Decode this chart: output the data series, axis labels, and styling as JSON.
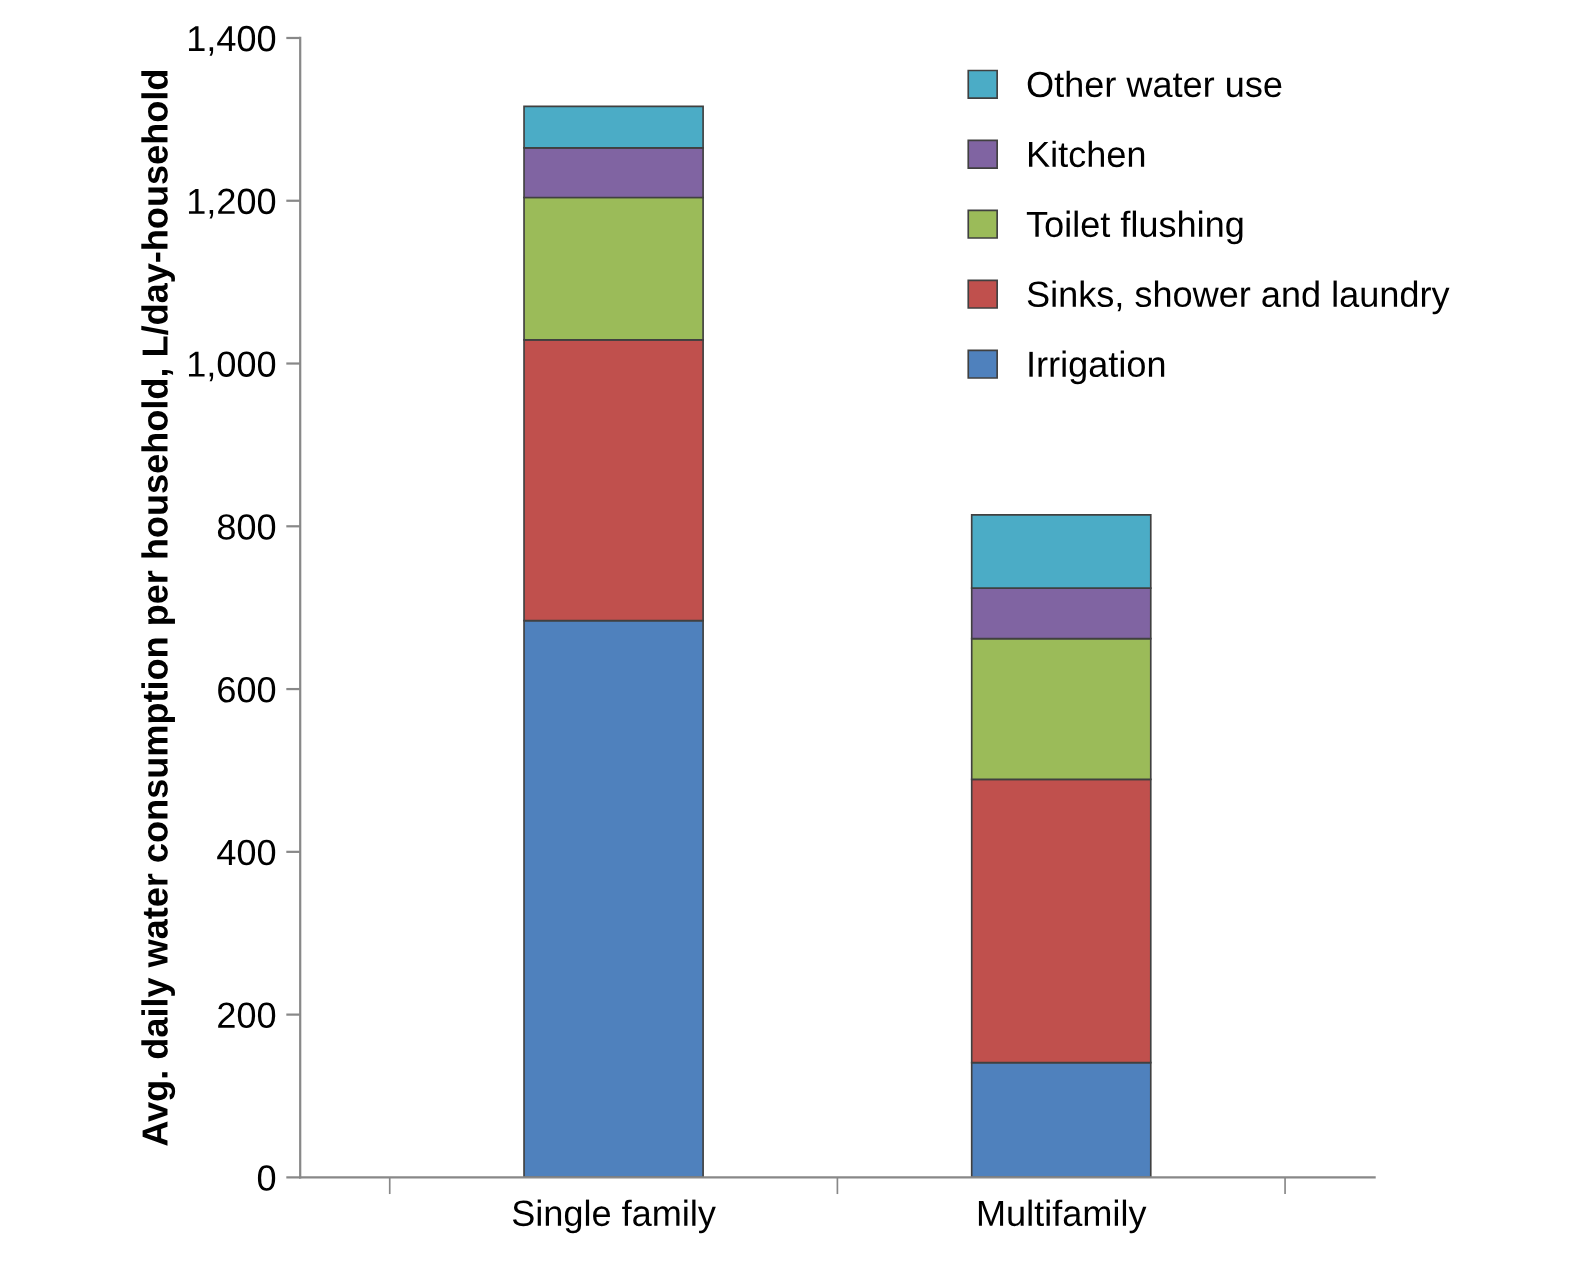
{
  "chart_data": {
    "type": "bar",
    "stacked": true,
    "ylabel": "Avg. daily water consumption per household, L/day-household",
    "categories": [
      "Single family",
      "Multifamily"
    ],
    "series": [
      {
        "name": "Irrigation",
        "color": "#4f81bd",
        "values": [
          684,
          141
        ]
      },
      {
        "name": "Sinks, shower and laundry",
        "color": "#c0504d",
        "values": [
          345,
          348
        ]
      },
      {
        "name": "Toilet flushing",
        "color": "#9bbb59",
        "values": [
          175,
          173
        ]
      },
      {
        "name": "Kitchen",
        "color": "#8064a2",
        "values": [
          61,
          62
        ]
      },
      {
        "name": "Other water use",
        "color": "#4bacc6",
        "values": [
          51,
          90
        ]
      }
    ],
    "ylim": [
      0,
      1400
    ],
    "yticks": [
      {
        "value": 0,
        "label": "0"
      },
      {
        "value": 200,
        "label": "200"
      },
      {
        "value": 400,
        "label": "400"
      },
      {
        "value": 600,
        "label": "600"
      },
      {
        "value": 800,
        "label": "800"
      },
      {
        "value": 1000,
        "label": "1,000"
      },
      {
        "value": 1200,
        "label": "1,200"
      },
      {
        "value": 1400,
        "label": "1,400"
      }
    ],
    "grid": false,
    "legend": "top right"
  }
}
